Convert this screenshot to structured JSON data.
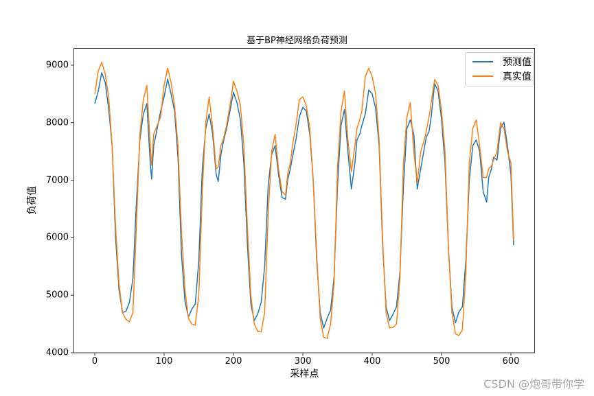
{
  "chart_data": {
    "type": "line",
    "title": "基于BP神经网络负荷预测",
    "xlabel": "采样点",
    "ylabel": "负荷值",
    "xlim": [
      -30,
      635
    ],
    "ylim": [
      4000,
      9300
    ],
    "xticks": [
      0,
      100,
      200,
      300,
      400,
      500,
      600
    ],
    "yticks": [
      4000,
      5000,
      6000,
      7000,
      8000,
      9000
    ],
    "grid": false,
    "legend_position": "upper right",
    "x": [
      0,
      5,
      10,
      15,
      20,
      25,
      30,
      35,
      40,
      45,
      50,
      55,
      60,
      65,
      70,
      75,
      80,
      82,
      85,
      90,
      95,
      100,
      105,
      110,
      115,
      120,
      125,
      130,
      135,
      140,
      145,
      150,
      155,
      160,
      165,
      170,
      175,
      178,
      182,
      185,
      190,
      195,
      200,
      205,
      210,
      215,
      220,
      225,
      230,
      235,
      240,
      245,
      250,
      255,
      260,
      265,
      270,
      275,
      278,
      282,
      285,
      290,
      295,
      300,
      305,
      310,
      315,
      320,
      325,
      330,
      335,
      340,
      345,
      350,
      355,
      360,
      365,
      370,
      375,
      378,
      382,
      385,
      390,
      395,
      400,
      405,
      410,
      415,
      420,
      425,
      430,
      435,
      440,
      445,
      450,
      455,
      460,
      465,
      470,
      475,
      478,
      482,
      485,
      490,
      495,
      500,
      505,
      510,
      515,
      520,
      525,
      530,
      535,
      540,
      545,
      550,
      555,
      560,
      565,
      568,
      572,
      575,
      580,
      585,
      590,
      595,
      600,
      604
    ],
    "series": [
      {
        "name": "预测值",
        "color": "#1f77b4",
        "values": [
          8330,
          8550,
          8870,
          8700,
          8250,
          7600,
          6000,
          5100,
          4700,
          4720,
          4880,
          5300,
          6600,
          7700,
          8150,
          8330,
          7300,
          7020,
          7600,
          7900,
          8200,
          8450,
          8760,
          8500,
          8200,
          7400,
          5700,
          4900,
          4620,
          4760,
          4850,
          5600,
          7200,
          7900,
          8150,
          7800,
          7100,
          6980,
          7450,
          7650,
          7900,
          8200,
          8530,
          8350,
          8050,
          7300,
          5900,
          4850,
          4560,
          4680,
          4880,
          5500,
          6900,
          7450,
          7600,
          7100,
          6700,
          6670,
          7000,
          7200,
          7400,
          7700,
          8100,
          8270,
          8200,
          7800,
          7000,
          5600,
          4700,
          4430,
          4600,
          4740,
          5300,
          6900,
          7950,
          8230,
          7500,
          6850,
          7300,
          7700,
          7800,
          7950,
          8150,
          8570,
          8500,
          8250,
          7600,
          5900,
          4800,
          4560,
          4670,
          4800,
          5400,
          6900,
          7900,
          8050,
          7800,
          6850,
          7200,
          7550,
          7750,
          7850,
          8100,
          8680,
          8550,
          8050,
          7300,
          5800,
          4800,
          4520,
          4710,
          4800,
          5600,
          7000,
          7600,
          7700,
          7500,
          6800,
          6620,
          7050,
          7200,
          7400,
          7350,
          7900,
          8010,
          7600,
          7100,
          5870
        ]
      },
      {
        "name": "真实值",
        "color": "#ff7f0e",
        "values": [
          8500,
          8900,
          9050,
          8850,
          8450,
          7600,
          6200,
          5200,
          4700,
          4580,
          4540,
          4700,
          6200,
          7800,
          8400,
          8650,
          7600,
          7260,
          7800,
          7950,
          8100,
          8650,
          8950,
          8700,
          8300,
          7600,
          6100,
          5100,
          4600,
          4500,
          4480,
          5000,
          6800,
          8000,
          8450,
          7900,
          7200,
          7230,
          7600,
          7700,
          7950,
          8300,
          8720,
          8550,
          8300,
          7600,
          6200,
          5000,
          4500,
          4370,
          4360,
          4700,
          6400,
          7500,
          7800,
          7200,
          6800,
          6740,
          7100,
          7300,
          7600,
          7950,
          8400,
          8450,
          8300,
          7900,
          7000,
          5700,
          4600,
          4270,
          4250,
          4500,
          5200,
          7200,
          8200,
          8550,
          7700,
          7150,
          7600,
          7900,
          8050,
          8200,
          8800,
          8950,
          8800,
          8500,
          7700,
          6000,
          4700,
          4430,
          4440,
          4500,
          5300,
          7300,
          8100,
          8350,
          7500,
          6950,
          7500,
          7700,
          7850,
          8100,
          8350,
          8750,
          8650,
          8200,
          7500,
          5800,
          4700,
          4330,
          4300,
          4400,
          5400,
          7300,
          7900,
          8050,
          7600,
          7050,
          7050,
          7200,
          7250,
          7350,
          7500,
          8000,
          7900,
          7500,
          7300,
          5950
        ]
      }
    ]
  },
  "legend": {
    "items": [
      {
        "label": "预测值",
        "color": "#1f77b4"
      },
      {
        "label": "真实值",
        "color": "#ff7f0e"
      }
    ]
  },
  "axis_ticks": {
    "y": [
      "9000",
      "8000",
      "7000",
      "6000",
      "5000",
      "4000"
    ],
    "x": [
      "0",
      "100",
      "200",
      "300",
      "400",
      "500",
      "600"
    ]
  },
  "watermark": "CSDN @炮哥带你学"
}
